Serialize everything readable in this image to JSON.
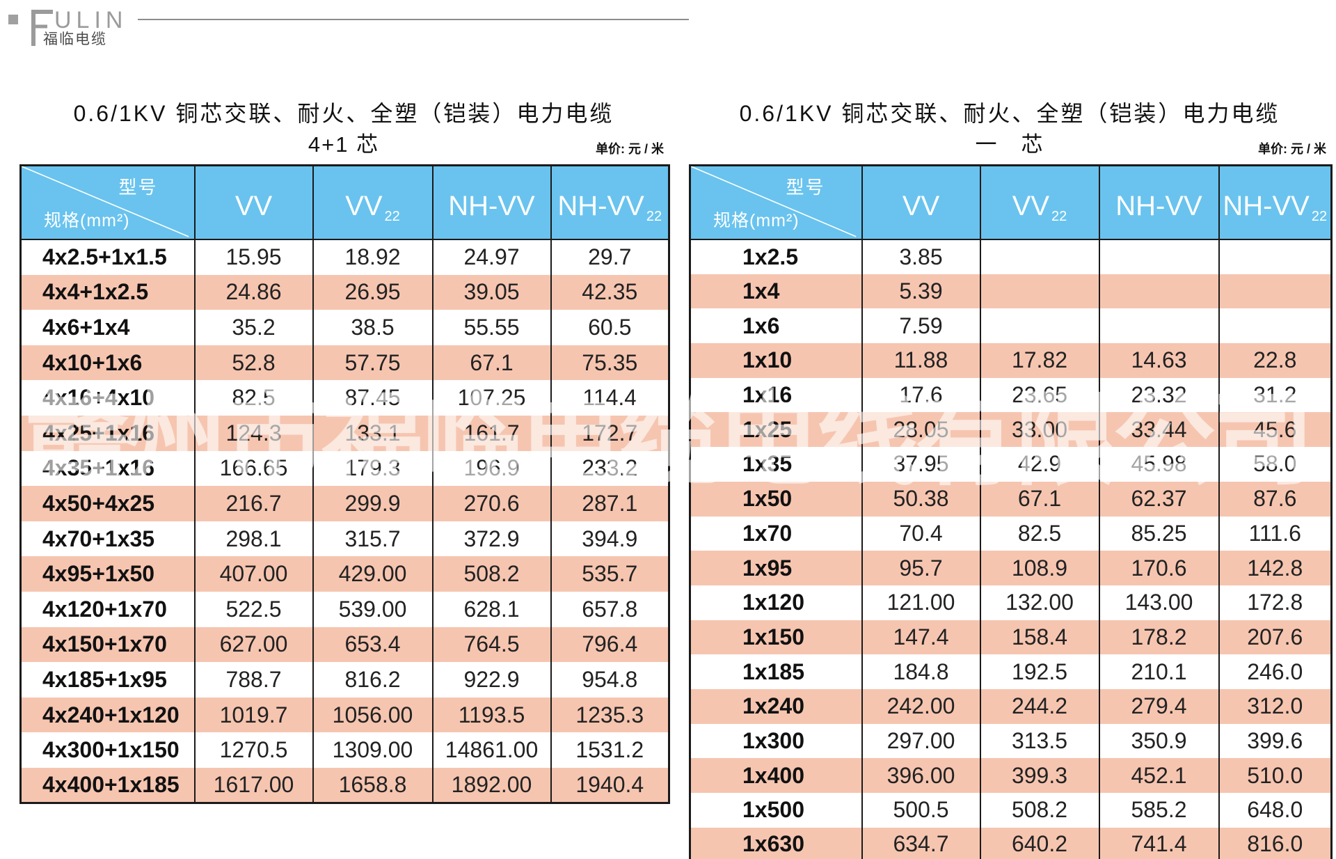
{
  "logo": {
    "brand": "ULIN",
    "brand_initial": "F",
    "subtitle": "福临电缆"
  },
  "watermark": "赣州市福临电缆电线有限公司",
  "tables": [
    {
      "title_line1": "0.6/1KV 铜芯交联、耐火、全塑（铠装）电力电缆",
      "title_line2": "4+1 芯",
      "unit_label": "单价:  元 / 米",
      "corner_top": "型号",
      "corner_bottom": "规格(mm²)",
      "columns": [
        {
          "text": "VV",
          "sub": ""
        },
        {
          "text": "VV",
          "sub": "22"
        },
        {
          "text": "NH-VV",
          "sub": ""
        },
        {
          "text": "NH-VV",
          "sub": "22"
        }
      ],
      "rows": [
        {
          "spec": "4x2.5+1x1.5",
          "values": [
            "15.95",
            "18.92",
            "24.97",
            "29.7"
          ]
        },
        {
          "spec": "4x4+1x2.5",
          "values": [
            "24.86",
            "26.95",
            "39.05",
            "42.35"
          ]
        },
        {
          "spec": "4x6+1x4",
          "values": [
            "35.2",
            "38.5",
            "55.55",
            "60.5"
          ]
        },
        {
          "spec": "4x10+1x6",
          "values": [
            "52.8",
            "57.75",
            "67.1",
            "75.35"
          ]
        },
        {
          "spec": "4x16+4x10",
          "values": [
            "82.5",
            "87.45",
            "107.25",
            "114.4"
          ]
        },
        {
          "spec": "4x25+1x16",
          "values": [
            "124.3",
            "133.1",
            "161.7",
            "172.7"
          ]
        },
        {
          "spec": "4x35+1x16",
          "values": [
            "166.65",
            "179.3",
            "196.9",
            "233.2"
          ]
        },
        {
          "spec": "4x50+4x25",
          "values": [
            "216.7",
            "299.9",
            "270.6",
            "287.1"
          ]
        },
        {
          "spec": "4x70+1x35",
          "values": [
            "298.1",
            "315.7",
            "372.9",
            "394.9"
          ]
        },
        {
          "spec": "4x95+1x50",
          "values": [
            "407.00",
            "429.00",
            "508.2",
            "535.7"
          ]
        },
        {
          "spec": "4x120+1x70",
          "values": [
            "522.5",
            "539.00",
            "628.1",
            "657.8"
          ]
        },
        {
          "spec": "4x150+1x70",
          "values": [
            "627.00",
            "653.4",
            "764.5",
            "796.4"
          ]
        },
        {
          "spec": "4x185+1x95",
          "values": [
            "788.7",
            "816.2",
            "922.9",
            "954.8"
          ]
        },
        {
          "spec": "4x240+1x120",
          "values": [
            "1019.7",
            "1056.00",
            "1193.5",
            "1235.3"
          ]
        },
        {
          "spec": "4x300+1x150",
          "values": [
            "1270.5",
            "1309.00",
            "14861.00",
            "1531.2"
          ]
        },
        {
          "spec": "4x400+1x185",
          "values": [
            "1617.00",
            "1658.8",
            "1892.00",
            "1940.4"
          ]
        }
      ]
    },
    {
      "title_line1": "0.6/1KV 铜芯交联、耐火、全塑（铠装）电力电缆",
      "title_line2": "一　芯",
      "unit_label": "单价:  元 / 米",
      "corner_top": "型号",
      "corner_bottom": "规格(mm²)",
      "columns": [
        {
          "text": "VV",
          "sub": ""
        },
        {
          "text": "VV",
          "sub": "22"
        },
        {
          "text": "NH-VV",
          "sub": ""
        },
        {
          "text": "NH-VV",
          "sub": "22"
        }
      ],
      "rows": [
        {
          "spec": "1x2.5",
          "values": [
            "3.85",
            "",
            "",
            ""
          ]
        },
        {
          "spec": "1x4",
          "values": [
            "5.39",
            "",
            "",
            ""
          ]
        },
        {
          "spec": "1x6",
          "values": [
            "7.59",
            "",
            "",
            ""
          ]
        },
        {
          "spec": "1x10",
          "values": [
            "11.88",
            "17.82",
            "14.63",
            "22.8"
          ]
        },
        {
          "spec": "1x16",
          "values": [
            "17.6",
            "23.65",
            "23.32",
            "31.2"
          ]
        },
        {
          "spec": "1x25",
          "values": [
            "28.05",
            "33.00",
            "33.44",
            "45.6"
          ]
        },
        {
          "spec": "1x35",
          "values": [
            "37.95",
            "42.9",
            "45.98",
            "58.0"
          ]
        },
        {
          "spec": "1x50",
          "values": [
            "50.38",
            "67.1",
            "62.37",
            "87.6"
          ]
        },
        {
          "spec": "1x70",
          "values": [
            "70.4",
            "82.5",
            "85.25",
            "111.6"
          ]
        },
        {
          "spec": "1x95",
          "values": [
            "95.7",
            "108.9",
            "170.6",
            "142.8"
          ]
        },
        {
          "spec": "1x120",
          "values": [
            "121.00",
            "132.00",
            "143.00",
            "172.8"
          ]
        },
        {
          "spec": "1x150",
          "values": [
            "147.4",
            "158.4",
            "178.2",
            "207.6"
          ]
        },
        {
          "spec": "1x185",
          "values": [
            "184.8",
            "192.5",
            "210.1",
            "246.0"
          ]
        },
        {
          "spec": "1x240",
          "values": [
            "242.00",
            "244.2",
            "279.4",
            "312.0"
          ]
        },
        {
          "spec": "1x300",
          "values": [
            "297.00",
            "313.5",
            "350.9",
            "399.6"
          ]
        },
        {
          "spec": "1x400",
          "values": [
            "396.00",
            "399.3",
            "452.1",
            "510.0"
          ]
        },
        {
          "spec": "1x500",
          "values": [
            "500.5",
            "508.2",
            "585.2",
            "648.0"
          ]
        },
        {
          "spec": "1x630",
          "values": [
            "634.7",
            "640.2",
            "741.4",
            "816.0"
          ]
        }
      ]
    }
  ],
  "colors": {
    "header_blue": "#69c3ee",
    "row_pink": "#f6c5b0",
    "border": "#1a1a1a"
  }
}
